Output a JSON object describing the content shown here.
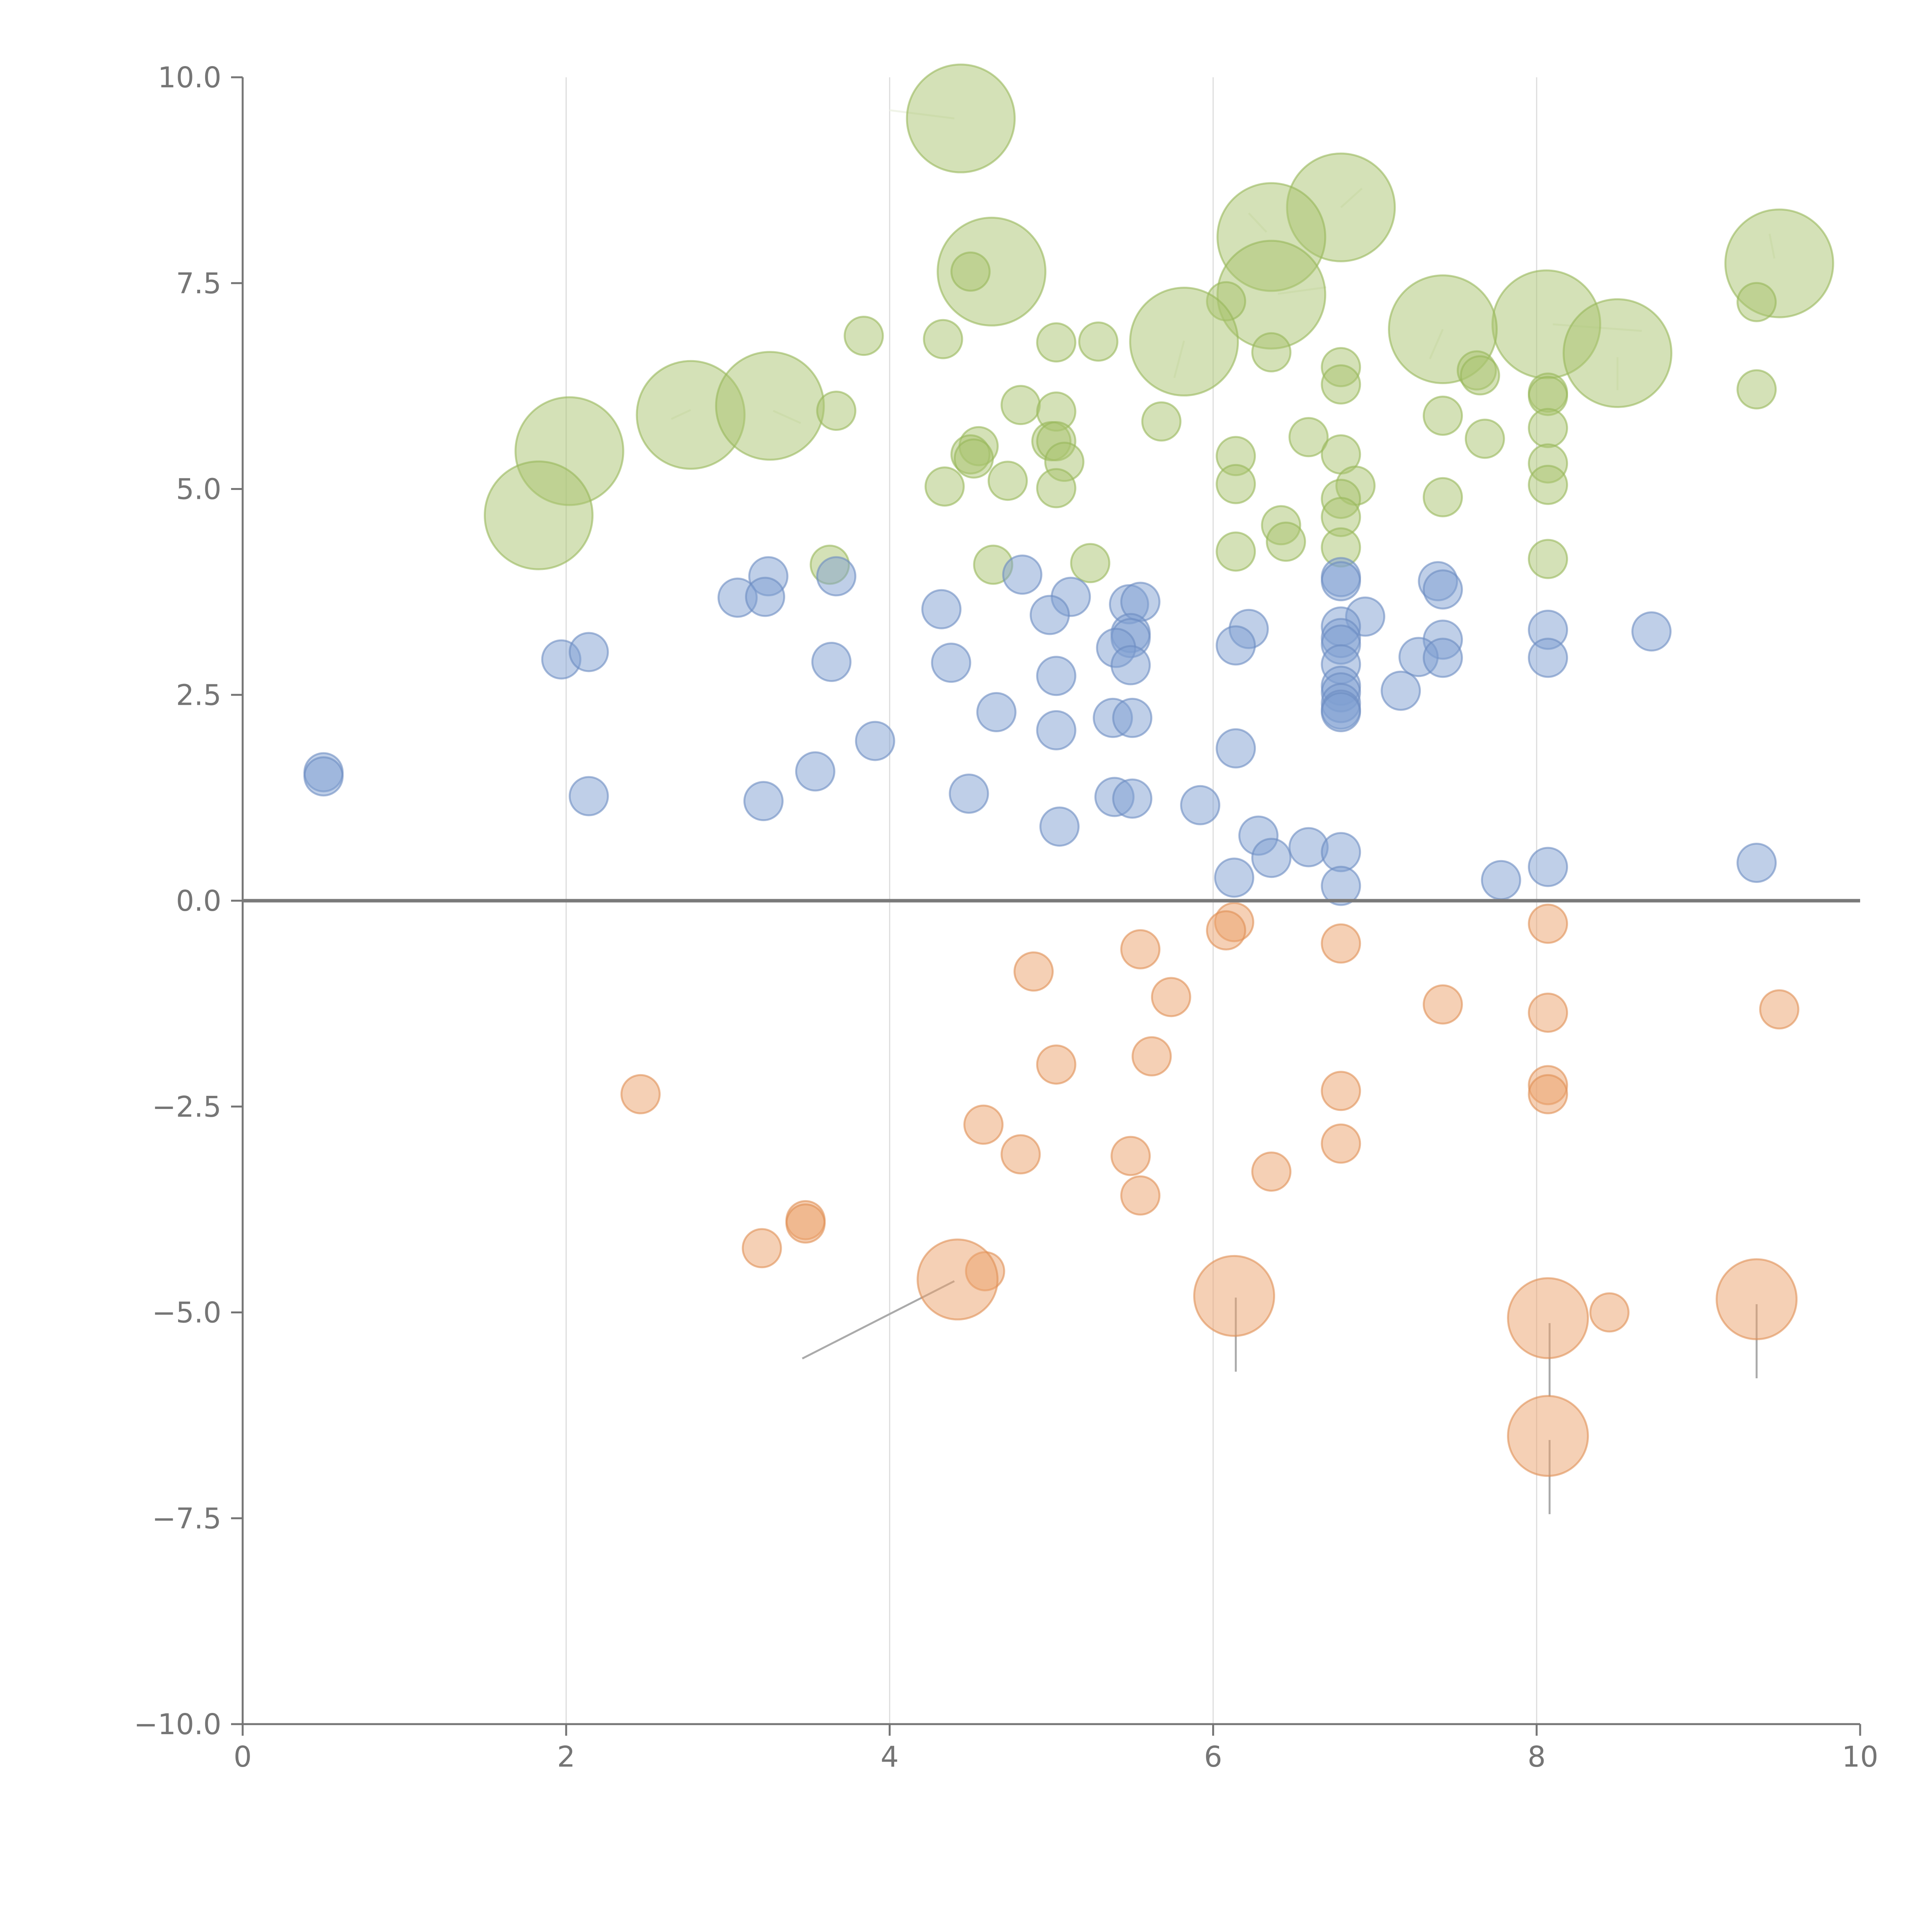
{
  "chart_data": {
    "type": "scatter",
    "title": "",
    "xlabel": "",
    "ylabel": "",
    "xlim": [
      0,
      10
    ],
    "ylim": [
      -10,
      10
    ],
    "x_ticks": [
      0,
      2,
      4,
      6,
      8,
      10
    ],
    "x_tick_labels": [
      "0",
      "2",
      "4",
      "6",
      "8",
      "10"
    ],
    "y_ticks": [
      10,
      7.5,
      5,
      2.5,
      0,
      -2.5,
      -5,
      -7.5,
      -10
    ],
    "y_tick_labels": [
      "10.0",
      "7.5",
      "5.0",
      "2.5",
      "0.0",
      "−2.5",
      "−5.0",
      "−7.5",
      "−10.0"
    ],
    "vertical_gridlines_at": [
      2,
      4,
      6,
      8
    ],
    "zero_line": 0,
    "colors": {
      "axis": "#757575",
      "grid": "#dddddd",
      "zero_line": "#7a7a7a",
      "leader_light": "#f0f4e8",
      "leader_dark": "#aaaaaa"
    },
    "series": [
      {
        "name": "green",
        "color": "#a9c46f",
        "stroke": "#98b75a",
        "points": [
          {
            "x": 4.44,
            "y": 9.5,
            "r": 1.55
          },
          {
            "x": 6.79,
            "y": 8.42,
            "r": 1.55
          },
          {
            "x": 6.36,
            "y": 8.06,
            "r": 1.55
          },
          {
            "x": 4.63,
            "y": 7.64,
            "r": 1.55
          },
          {
            "x": 4.5,
            "y": 7.64,
            "r": 0.55
          },
          {
            "x": 9.5,
            "y": 7.74,
            "r": 1.55
          },
          {
            "x": 6.36,
            "y": 7.36,
            "r": 1.55
          },
          {
            "x": 6.08,
            "y": 7.28,
            "r": 0.55
          },
          {
            "x": 9.36,
            "y": 7.27,
            "r": 0.55
          },
          {
            "x": 8.06,
            "y": 7.0,
            "r": 1.55
          },
          {
            "x": 7.42,
            "y": 6.94,
            "r": 1.55
          },
          {
            "x": 5.82,
            "y": 6.79,
            "r": 1.55
          },
          {
            "x": 3.84,
            "y": 6.86,
            "r": 0.55
          },
          {
            "x": 4.33,
            "y": 6.82,
            "r": 0.55
          },
          {
            "x": 5.03,
            "y": 6.78,
            "r": 0.55
          },
          {
            "x": 5.29,
            "y": 6.79,
            "r": 0.55
          },
          {
            "x": 6.36,
            "y": 6.66,
            "r": 0.55
          },
          {
            "x": 8.5,
            "y": 6.65,
            "r": 1.55
          },
          {
            "x": 6.79,
            "y": 6.48,
            "r": 0.55
          },
          {
            "x": 7.63,
            "y": 6.44,
            "r": 0.55
          },
          {
            "x": 7.65,
            "y": 6.38,
            "r": 0.55
          },
          {
            "x": 6.79,
            "y": 6.27,
            "r": 0.55
          },
          {
            "x": 8.07,
            "y": 6.17,
            "r": 0.55
          },
          {
            "x": 8.07,
            "y": 6.13,
            "r": 0.55
          },
          {
            "x": 9.36,
            "y": 6.21,
            "r": 0.55
          },
          {
            "x": 2.77,
            "y": 5.9,
            "r": 1.55
          },
          {
            "x": 3.26,
            "y": 6.01,
            "r": 1.55
          },
          {
            "x": 3.67,
            "y": 5.95,
            "r": 0.55
          },
          {
            "x": 4.81,
            "y": 6.02,
            "r": 0.55
          },
          {
            "x": 5.03,
            "y": 5.94,
            "r": 0.55
          },
          {
            "x": 7.42,
            "y": 5.89,
            "r": 0.55
          },
          {
            "x": 5.68,
            "y": 5.82,
            "r": 0.55
          },
          {
            "x": 8.07,
            "y": 5.74,
            "r": 0.55
          },
          {
            "x": 6.59,
            "y": 5.63,
            "r": 0.55
          },
          {
            "x": 7.68,
            "y": 5.61,
            "r": 0.55
          },
          {
            "x": 5.0,
            "y": 5.58,
            "r": 0.55
          },
          {
            "x": 5.03,
            "y": 5.58,
            "r": 0.55
          },
          {
            "x": 4.55,
            "y": 5.52,
            "r": 0.55
          },
          {
            "x": 4.5,
            "y": 5.42,
            "r": 0.55
          },
          {
            "x": 4.52,
            "y": 5.37,
            "r": 0.55
          },
          {
            "x": 6.14,
            "y": 5.4,
            "r": 0.55
          },
          {
            "x": 6.79,
            "y": 5.42,
            "r": 0.55
          },
          {
            "x": 5.08,
            "y": 5.33,
            "r": 0.55
          },
          {
            "x": 8.07,
            "y": 5.31,
            "r": 0.55
          },
          {
            "x": 2.02,
            "y": 5.46,
            "r": 1.55
          },
          {
            "x": 1.83,
            "y": 4.68,
            "r": 1.55
          },
          {
            "x": 4.34,
            "y": 5.03,
            "r": 0.55
          },
          {
            "x": 4.73,
            "y": 5.1,
            "r": 0.55
          },
          {
            "x": 5.03,
            "y": 5.01,
            "r": 0.55
          },
          {
            "x": 6.14,
            "y": 5.06,
            "r": 0.55
          },
          {
            "x": 6.88,
            "y": 5.04,
            "r": 0.55
          },
          {
            "x": 8.07,
            "y": 5.05,
            "r": 0.55
          },
          {
            "x": 6.79,
            "y": 4.88,
            "r": 0.55
          },
          {
            "x": 7.42,
            "y": 4.9,
            "r": 0.55
          },
          {
            "x": 6.79,
            "y": 4.66,
            "r": 0.55
          },
          {
            "x": 6.42,
            "y": 4.56,
            "r": 0.55
          },
          {
            "x": 6.45,
            "y": 4.36,
            "r": 0.55
          },
          {
            "x": 6.79,
            "y": 4.29,
            "r": 0.55
          },
          {
            "x": 6.14,
            "y": 4.24,
            "r": 0.55
          },
          {
            "x": 8.07,
            "y": 4.15,
            "r": 0.55
          },
          {
            "x": 3.63,
            "y": 4.08,
            "r": 0.55
          },
          {
            "x": 4.64,
            "y": 4.08,
            "r": 0.55
          },
          {
            "x": 5.24,
            "y": 4.1,
            "r": 0.55
          }
        ]
      },
      {
        "name": "blue",
        "color": "#7f9fd1",
        "stroke": "#6c8cc2",
        "points": [
          {
            "x": 3.25,
            "y": 3.94,
            "r": 0.55
          },
          {
            "x": 3.67,
            "y": 3.94,
            "r": 0.55
          },
          {
            "x": 4.82,
            "y": 3.96,
            "r": 0.55
          },
          {
            "x": 6.79,
            "y": 3.93,
            "r": 0.55
          },
          {
            "x": 6.79,
            "y": 3.88,
            "r": 0.55
          },
          {
            "x": 7.39,
            "y": 3.88,
            "r": 0.55
          },
          {
            "x": 7.42,
            "y": 3.78,
            "r": 0.55
          },
          {
            "x": 3.06,
            "y": 3.68,
            "r": 0.55
          },
          {
            "x": 3.23,
            "y": 3.69,
            "r": 0.55
          },
          {
            "x": 5.12,
            "y": 3.69,
            "r": 0.55
          },
          {
            "x": 5.48,
            "y": 3.6,
            "r": 0.55
          },
          {
            "x": 5.55,
            "y": 3.63,
            "r": 0.55
          },
          {
            "x": 4.32,
            "y": 3.54,
            "r": 0.55
          },
          {
            "x": 4.99,
            "y": 3.47,
            "r": 0.55
          },
          {
            "x": 6.94,
            "y": 3.45,
            "r": 0.55
          },
          {
            "x": 6.79,
            "y": 3.33,
            "r": 0.55
          },
          {
            "x": 6.22,
            "y": 3.3,
            "r": 0.55
          },
          {
            "x": 8.07,
            "y": 3.29,
            "r": 0.55
          },
          {
            "x": 8.71,
            "y": 3.27,
            "r": 0.55
          },
          {
            "x": 5.49,
            "y": 3.25,
            "r": 0.55
          },
          {
            "x": 5.49,
            "y": 3.19,
            "r": 0.55
          },
          {
            "x": 6.79,
            "y": 3.19,
            "r": 0.55
          },
          {
            "x": 7.42,
            "y": 3.17,
            "r": 0.55
          },
          {
            "x": 6.79,
            "y": 3.11,
            "r": 0.55
          },
          {
            "x": 6.14,
            "y": 3.1,
            "r": 0.55
          },
          {
            "x": 5.4,
            "y": 3.07,
            "r": 0.55
          },
          {
            "x": 1.97,
            "y": 2.93,
            "r": 0.55
          },
          {
            "x": 2.14,
            "y": 3.02,
            "r": 0.55
          },
          {
            "x": 3.64,
            "y": 2.9,
            "r": 0.55
          },
          {
            "x": 4.38,
            "y": 2.89,
            "r": 0.55
          },
          {
            "x": 5.49,
            "y": 2.86,
            "r": 0.55
          },
          {
            "x": 6.79,
            "y": 2.87,
            "r": 0.55
          },
          {
            "x": 7.27,
            "y": 2.96,
            "r": 0.55
          },
          {
            "x": 7.42,
            "y": 2.95,
            "r": 0.55
          },
          {
            "x": 8.07,
            "y": 2.95,
            "r": 0.55
          },
          {
            "x": 5.03,
            "y": 2.73,
            "r": 0.55
          },
          {
            "x": 6.79,
            "y": 2.61,
            "r": 0.55
          },
          {
            "x": 6.79,
            "y": 2.53,
            "r": 0.55
          },
          {
            "x": 7.16,
            "y": 2.55,
            "r": 0.55
          },
          {
            "x": 6.79,
            "y": 2.4,
            "r": 0.55
          },
          {
            "x": 6.79,
            "y": 2.32,
            "r": 0.55
          },
          {
            "x": 6.79,
            "y": 2.29,
            "r": 0.55
          },
          {
            "x": 4.66,
            "y": 2.29,
            "r": 0.55
          },
          {
            "x": 5.38,
            "y": 2.22,
            "r": 0.55
          },
          {
            "x": 5.5,
            "y": 2.22,
            "r": 0.55
          },
          {
            "x": 5.03,
            "y": 2.07,
            "r": 0.55
          },
          {
            "x": 3.91,
            "y": 1.94,
            "r": 0.55
          },
          {
            "x": 6.14,
            "y": 1.85,
            "r": 0.55
          },
          {
            "x": 0.5,
            "y": 1.56,
            "r": 0.55
          },
          {
            "x": 0.5,
            "y": 1.51,
            "r": 0.55
          },
          {
            "x": 3.54,
            "y": 1.57,
            "r": 0.55
          },
          {
            "x": 2.14,
            "y": 1.27,
            "r": 0.55
          },
          {
            "x": 3.22,
            "y": 1.21,
            "r": 0.55
          },
          {
            "x": 4.49,
            "y": 1.3,
            "r": 0.55
          },
          {
            "x": 5.39,
            "y": 1.26,
            "r": 0.55
          },
          {
            "x": 5.5,
            "y": 1.24,
            "r": 0.55
          },
          {
            "x": 5.92,
            "y": 1.16,
            "r": 0.55
          },
          {
            "x": 5.05,
            "y": 0.9,
            "r": 0.55
          },
          {
            "x": 6.28,
            "y": 0.79,
            "r": 0.55
          },
          {
            "x": 6.59,
            "y": 0.65,
            "r": 0.55
          },
          {
            "x": 6.79,
            "y": 0.59,
            "r": 0.55
          },
          {
            "x": 6.36,
            "y": 0.52,
            "r": 0.55
          },
          {
            "x": 9.36,
            "y": 0.46,
            "r": 0.55
          },
          {
            "x": 8.07,
            "y": 0.41,
            "r": 0.55
          },
          {
            "x": 6.13,
            "y": 0.28,
            "r": 0.55
          },
          {
            "x": 7.78,
            "y": 0.25,
            "r": 0.55
          },
          {
            "x": 6.79,
            "y": 0.18,
            "r": 0.55
          }
        ]
      },
      {
        "name": "orange",
        "color": "#eca26b",
        "stroke": "#df8f55",
        "points": [
          {
            "x": 6.13,
            "y": -0.26,
            "r": 0.55
          },
          {
            "x": 6.08,
            "y": -0.36,
            "r": 0.55
          },
          {
            "x": 8.07,
            "y": -0.28,
            "r": 0.55
          },
          {
            "x": 6.79,
            "y": -0.52,
            "r": 0.55
          },
          {
            "x": 5.55,
            "y": -0.59,
            "r": 0.55
          },
          {
            "x": 4.89,
            "y": -0.86,
            "r": 0.55
          },
          {
            "x": 5.74,
            "y": -1.17,
            "r": 0.55
          },
          {
            "x": 7.42,
            "y": -1.26,
            "r": 0.55
          },
          {
            "x": 8.07,
            "y": -1.36,
            "r": 0.55
          },
          {
            "x": 9.5,
            "y": -1.32,
            "r": 0.55
          },
          {
            "x": 5.62,
            "y": -1.89,
            "r": 0.55
          },
          {
            "x": 5.03,
            "y": -1.99,
            "r": 0.55
          },
          {
            "x": 2.46,
            "y": -2.35,
            "r": 0.55
          },
          {
            "x": 6.79,
            "y": -2.31,
            "r": 0.55
          },
          {
            "x": 8.07,
            "y": -2.24,
            "r": 0.55
          },
          {
            "x": 8.07,
            "y": -2.35,
            "r": 0.55
          },
          {
            "x": 4.58,
            "y": -2.72,
            "r": 0.55
          },
          {
            "x": 6.79,
            "y": -2.95,
            "r": 0.55
          },
          {
            "x": 4.81,
            "y": -3.08,
            "r": 0.55
          },
          {
            "x": 5.49,
            "y": -3.1,
            "r": 0.55
          },
          {
            "x": 6.36,
            "y": -3.29,
            "r": 0.55
          },
          {
            "x": 5.55,
            "y": -3.58,
            "r": 0.55
          },
          {
            "x": 3.48,
            "y": -3.88,
            "r": 0.55
          },
          {
            "x": 3.48,
            "y": -3.92,
            "r": 0.55
          },
          {
            "x": 3.21,
            "y": -4.22,
            "r": 0.55
          },
          {
            "x": 4.59,
            "y": -4.5,
            "r": 0.55
          },
          {
            "x": 4.42,
            "y": -4.6,
            "r": 1.15
          },
          {
            "x": 6.13,
            "y": -4.8,
            "r": 1.15
          },
          {
            "x": 8.45,
            "y": -5.0,
            "r": 0.55
          },
          {
            "x": 9.36,
            "y": -4.84,
            "r": 1.15
          },
          {
            "x": 8.07,
            "y": -5.07,
            "r": 1.15
          },
          {
            "x": 8.07,
            "y": -6.5,
            "r": 1.15
          }
        ]
      }
    ],
    "leader_lines": [
      {
        "kind": "dark",
        "x1": 4.4,
        "y1": -4.62,
        "x2": 3.46,
        "y2": -5.56
      },
      {
        "kind": "dark",
        "x1": 6.14,
        "y1": -4.82,
        "x2": 6.14,
        "y2": -5.72
      },
      {
        "kind": "dark",
        "x1": 8.08,
        "y1": -5.13,
        "x2": 8.08,
        "y2": -6.02
      },
      {
        "kind": "dark",
        "x1": 9.36,
        "y1": -4.9,
        "x2": 9.36,
        "y2": -5.8
      },
      {
        "kind": "dark",
        "x1": 8.08,
        "y1": -6.55,
        "x2": 8.08,
        "y2": -7.45
      },
      {
        "kind": "light",
        "x1": 4.4,
        "y1": 9.5,
        "x2": 4.0,
        "y2": 9.6
      },
      {
        "kind": "light",
        "x1": 6.79,
        "y1": 8.42,
        "x2": 6.92,
        "y2": 8.65
      },
      {
        "kind": "light",
        "x1": 6.33,
        "y1": 8.12,
        "x2": 6.22,
        "y2": 8.35
      },
      {
        "kind": "light",
        "x1": 9.47,
        "y1": 7.8,
        "x2": 9.44,
        "y2": 8.1
      },
      {
        "kind": "light",
        "x1": 6.4,
        "y1": 7.37,
        "x2": 6.7,
        "y2": 7.45
      },
      {
        "kind": "light",
        "x1": 8.1,
        "y1": 7.0,
        "x2": 8.65,
        "y2": 6.92
      },
      {
        "kind": "light",
        "x1": 7.42,
        "y1": 6.94,
        "x2": 7.34,
        "y2": 6.58
      },
      {
        "kind": "light",
        "x1": 5.82,
        "y1": 6.8,
        "x2": 5.76,
        "y2": 6.35
      },
      {
        "kind": "light",
        "x1": 8.5,
        "y1": 6.6,
        "x2": 8.5,
        "y2": 6.2
      },
      {
        "kind": "light",
        "x1": 2.77,
        "y1": 5.96,
        "x2": 2.65,
        "y2": 5.85
      },
      {
        "kind": "light",
        "x1": 3.28,
        "y1": 5.95,
        "x2": 3.45,
        "y2": 5.8
      }
    ]
  }
}
